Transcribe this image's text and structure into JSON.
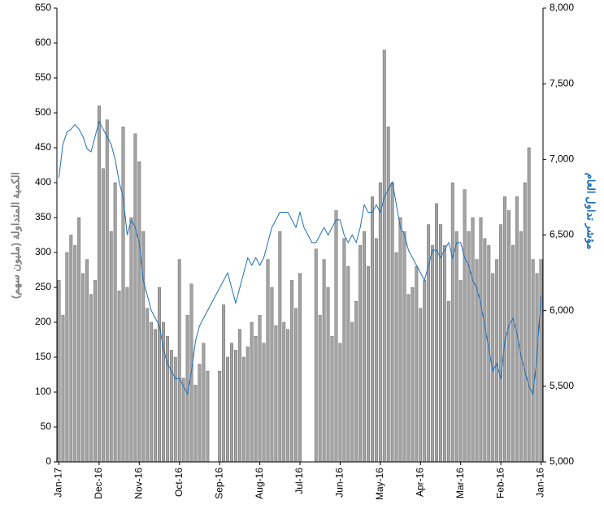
{
  "chart_data": {
    "type": "bar-line",
    "y_label": "الكمية المتداولة (مليون سهم)",
    "y2_label": "مؤشر تداول العام",
    "categories": [
      "Jan-17",
      null,
      null,
      null,
      null,
      null,
      null,
      null,
      null,
      null,
      "Dec-16",
      null,
      null,
      null,
      null,
      null,
      null,
      null,
      null,
      null,
      "Nov-16",
      null,
      null,
      null,
      null,
      null,
      null,
      null,
      null,
      null,
      "Oct-16",
      null,
      null,
      null,
      null,
      null,
      null,
      null,
      null,
      null,
      "Sep-16",
      null,
      null,
      null,
      null,
      null,
      null,
      null,
      null,
      null,
      "Aug-16",
      null,
      null,
      null,
      null,
      null,
      null,
      null,
      null,
      null,
      "Jul-16",
      null,
      null,
      null,
      null,
      null,
      null,
      null,
      null,
      null,
      "Jun-16",
      null,
      null,
      null,
      null,
      null,
      null,
      null,
      null,
      null,
      "May-16",
      null,
      null,
      null,
      null,
      null,
      null,
      null,
      null,
      null,
      "Apr-16",
      null,
      null,
      null,
      null,
      null,
      null,
      null,
      null,
      null,
      "Mar-16",
      null,
      null,
      null,
      null,
      null,
      null,
      null,
      null,
      null,
      "Feb-16",
      null,
      null,
      null,
      null,
      null,
      null,
      null,
      null,
      null,
      "Jan-16"
    ],
    "series": [
      {
        "type": "bar",
        "color": "#a3a3a3",
        "values": [
          260,
          210,
          300,
          325,
          310,
          350,
          270,
          290,
          240,
          260,
          510,
          420,
          490,
          330,
          400,
          245,
          480,
          250,
          350,
          470,
          430,
          330,
          220,
          200,
          190,
          250,
          200,
          180,
          160,
          150,
          290,
          120,
          210,
          255,
          110,
          140,
          170,
          130,
          null,
          null,
          130,
          225,
          150,
          170,
          160,
          190,
          150,
          165,
          200,
          180,
          210,
          170,
          290,
          250,
          195,
          330,
          200,
          190,
          260,
          220,
          270,
          null,
          null,
          null,
          305,
          210,
          290,
          250,
          180,
          360,
          170,
          320,
          280,
          200,
          230,
          310,
          330,
          280,
          380,
          320,
          400,
          590,
          480,
          400,
          300,
          350,
          330,
          240,
          250,
          280,
          220,
          260,
          340,
          310,
          370,
          340,
          310,
          230,
          400,
          330,
          260,
          390,
          330,
          350,
          290,
          350,
          320,
          310,
          270,
          290,
          340,
          380,
          360,
          310,
          380,
          330,
          400,
          450,
          290,
          270,
          290
        ]
      },
      {
        "type": "line",
        "axis": "y2",
        "color": "#1f6fb8",
        "values": [
          6880,
          7100,
          7180,
          7200,
          7230,
          7200,
          7150,
          7070,
          7050,
          7150,
          7250,
          7200,
          7150,
          7100,
          7000,
          6850,
          6750,
          6500,
          6600,
          6550,
          6450,
          6200,
          6100,
          6000,
          5950,
          5900,
          5750,
          5650,
          5600,
          5550,
          5550,
          5500,
          5450,
          5600,
          5800,
          5900,
          5950,
          6000,
          6050,
          6100,
          6150,
          6200,
          6250,
          6150,
          6050,
          6150,
          6250,
          6350,
          6300,
          6350,
          6300,
          6350,
          6450,
          6550,
          6600,
          6650,
          6650,
          6650,
          6600,
          6550,
          6650,
          6550,
          6500,
          6450,
          6450,
          6500,
          6550,
          6500,
          6550,
          6600,
          6600,
          6500,
          6450,
          6500,
          6450,
          6550,
          6700,
          6650,
          6650,
          6700,
          6650,
          6750,
          6800,
          6850,
          6700,
          6550,
          6500,
          6400,
          6350,
          6300,
          6250,
          6200,
          6300,
          6400,
          6400,
          6350,
          6400,
          6450,
          6350,
          6450,
          6450,
          6350,
          6300,
          6200,
          6150,
          6050,
          5900,
          5750,
          5600,
          5650,
          5550,
          5800,
          5900,
          5950,
          5850,
          5700,
          5600,
          5500,
          5450,
          5700,
          6100
        ]
      }
    ],
    "ylim": [
      0,
      650
    ],
    "yticks": [
      0,
      50,
      100,
      150,
      200,
      250,
      300,
      350,
      400,
      450,
      500,
      550,
      600,
      650
    ],
    "y2lim": [
      5000,
      8000
    ],
    "y2ticks": [
      {
        "value": 5000,
        "label": "5,000"
      },
      {
        "value": 5500,
        "label": "5,500"
      },
      {
        "value": 6000,
        "label": "6,000"
      },
      {
        "value": 6500,
        "label": "6,500"
      },
      {
        "value": 7000,
        "label": "7,000"
      },
      {
        "value": 7500,
        "label": "7,500"
      },
      {
        "value": 8000,
        "label": "8,000"
      }
    ]
  }
}
